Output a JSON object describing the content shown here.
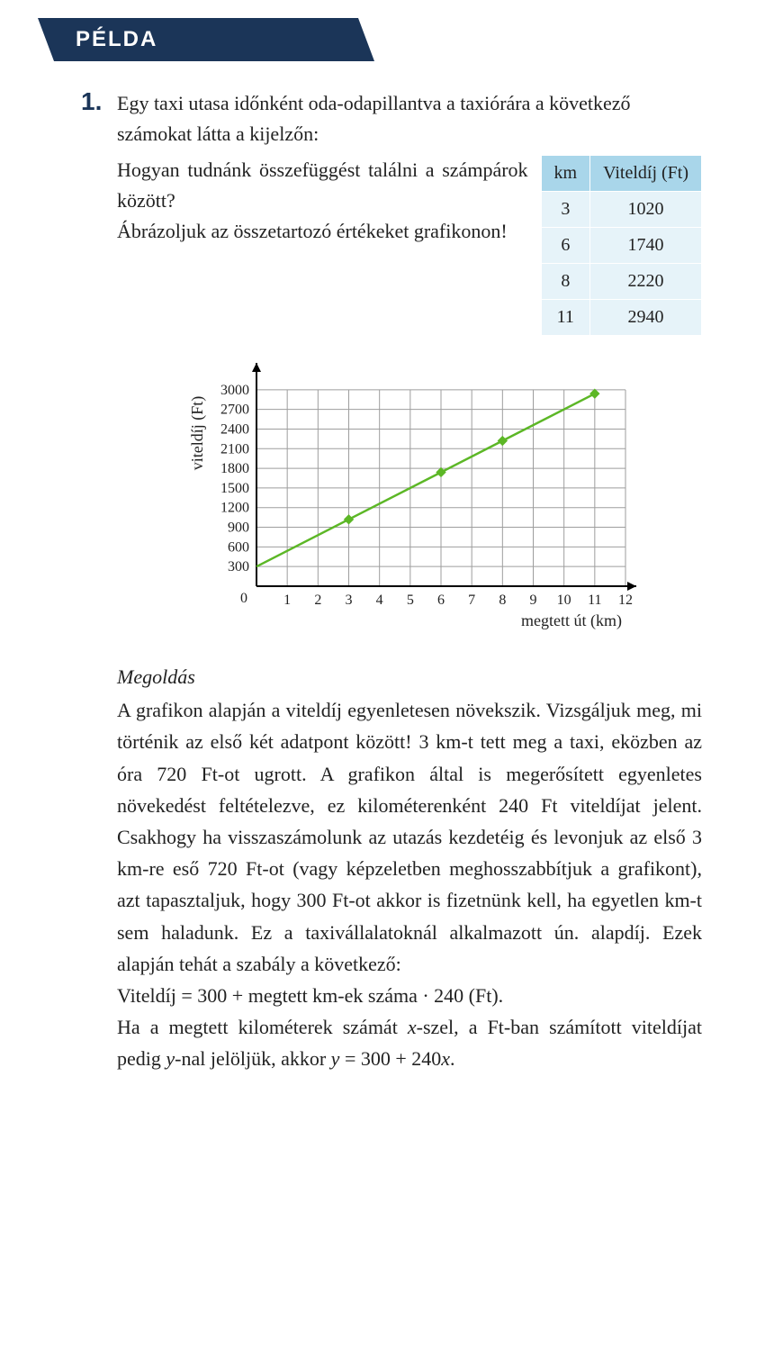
{
  "banner": {
    "title": "PÉLDA"
  },
  "item": {
    "number": "1.",
    "intro": "Egy taxi utasa időnként oda-odapillantva a taxiórára a következő számokat látta a kijelzőn:",
    "question": "Hogyan tudnánk összefüggést találni a számpárok között?\nÁbrázoljuk az összetartozó értékeket grafikonon!"
  },
  "table": {
    "headers": [
      "km",
      "Viteldíj (Ft)"
    ],
    "rows": [
      [
        "3",
        "1020"
      ],
      [
        "6",
        "1740"
      ],
      [
        "8",
        "2220"
      ],
      [
        "11",
        "2940"
      ]
    ],
    "header_bg": "#a9d6ea",
    "cell_bg": "#e6f3f9",
    "border_color": "#ffffff",
    "font_size": 20
  },
  "chart": {
    "type": "line",
    "x_label": "megtett út (km)",
    "y_label": "viteldíj (Ft)",
    "x_ticks": [
      1,
      2,
      3,
      4,
      5,
      6,
      7,
      8,
      9,
      10,
      11,
      12
    ],
    "y_ticks": [
      300,
      600,
      900,
      1200,
      1500,
      1800,
      2100,
      2400,
      2700,
      3000
    ],
    "xlim": [
      0,
      12
    ],
    "ylim": [
      0,
      3300
    ],
    "line_color": "#5cb726",
    "marker_color": "#5cb726",
    "grid_color": "#9e9e9e",
    "axis_color": "#000000",
    "background_color": "#ffffff",
    "line_width": 2.5,
    "marker_size": 5,
    "points": [
      {
        "x": 0,
        "y": 300
      },
      {
        "x": 3,
        "y": 1020
      },
      {
        "x": 6,
        "y": 1740
      },
      {
        "x": 8,
        "y": 2220
      },
      {
        "x": 11,
        "y": 2940
      }
    ],
    "markers_at": [
      {
        "x": 3,
        "y": 1020
      },
      {
        "x": 6,
        "y": 1740
      },
      {
        "x": 8,
        "y": 2220
      },
      {
        "x": 11,
        "y": 2940
      }
    ],
    "origin_label": "0",
    "label_fontsize": 16,
    "axis_title_fontsize": 18
  },
  "solution": {
    "title": "Megoldás",
    "body": "A grafikon alapján a viteldíj egyenletesen növekszik. Vizsgáljuk meg, mi történik az első két adatpont között! 3 km-t tett meg a taxi, eközben az óra 720 Ft-ot ugrott. A grafikon által is megerősített egyenletes növekedést feltételezve, ez kilométerenként 240 Ft viteldíjat jelent. Csakhogy ha visszaszámolunk az utazás kezdetéig és levonjuk az első 3 km-re eső 720 Ft-ot (vagy képzeletben meghosszabbítjuk a grafikont), azt tapasztaljuk, hogy 300 Ft-ot akkor is fizetnünk kell, ha egyetlen km-t sem haladunk. Ez a taxivállalatoknál alkalmazott ún. alapdíj. Ezek alapján tehát a szabály a következő:",
    "formula": "Viteldíj = 300 + megtett km-ek száma · 240 (Ft).",
    "closing": "Ha a megtett kilométerek számát x-szel, a Ft-ban számított viteldíjat pedig y-nal jelöljük, akkor y = 300 + 240x."
  }
}
